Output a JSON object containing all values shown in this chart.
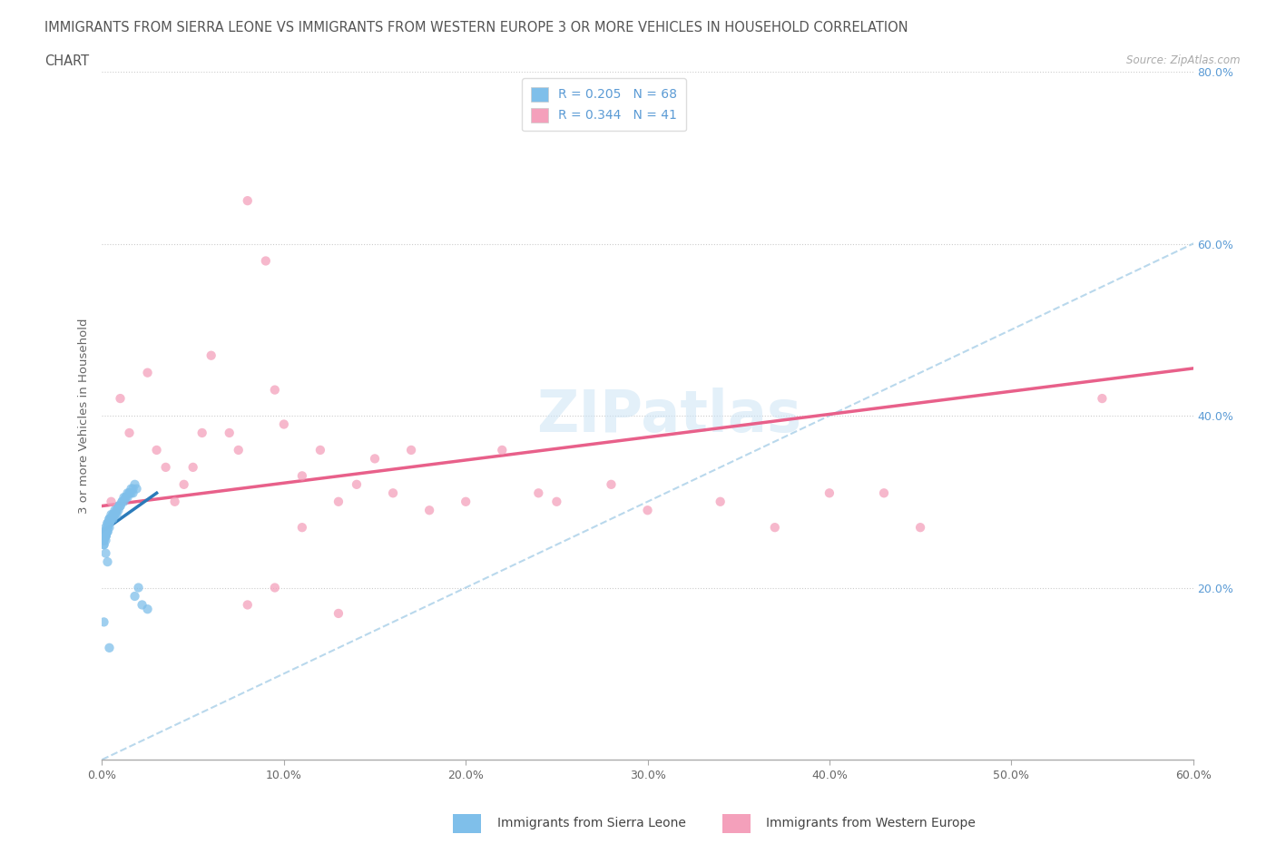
{
  "title_line1": "IMMIGRANTS FROM SIERRA LEONE VS IMMIGRANTS FROM WESTERN EUROPE 3 OR MORE VEHICLES IN HOUSEHOLD CORRELATION",
  "title_line2": "CHART",
  "source_text": "Source: ZipAtlas.com",
  "ylabel": "3 or more Vehicles in Household",
  "legend_label1": "Immigrants from Sierra Leone",
  "legend_label2": "Immigrants from Western Europe",
  "R1": 0.205,
  "N1": 68,
  "R2": 0.344,
  "N2": 41,
  "color_sl": "#7fbfea",
  "color_we": "#f4a0bb",
  "trendline_sl_color": "#2b7bba",
  "trendline_we_color": "#e8608a",
  "trendline_diag_color": "#a8cfe8",
  "xlim": [
    0.0,
    0.6
  ],
  "ylim": [
    0.0,
    0.8
  ],
  "sl_x": [
    0.002,
    0.003,
    0.001,
    0.004,
    0.002,
    0.001,
    0.003,
    0.002,
    0.001,
    0.002,
    0.003,
    0.004,
    0.005,
    0.003,
    0.002,
    0.001,
    0.004,
    0.003,
    0.002,
    0.001,
    0.005,
    0.006,
    0.004,
    0.003,
    0.002,
    0.007,
    0.005,
    0.003,
    0.004,
    0.002,
    0.008,
    0.006,
    0.004,
    0.009,
    0.007,
    0.005,
    0.01,
    0.008,
    0.006,
    0.011,
    0.009,
    0.007,
    0.012,
    0.01,
    0.008,
    0.013,
    0.011,
    0.009,
    0.014,
    0.012,
    0.015,
    0.013,
    0.016,
    0.014,
    0.017,
    0.015,
    0.018,
    0.016,
    0.019,
    0.017,
    0.02,
    0.018,
    0.022,
    0.025,
    0.003,
    0.002,
    0.001,
    0.004
  ],
  "sl_y": [
    0.27,
    0.275,
    0.265,
    0.28,
    0.26,
    0.255,
    0.27,
    0.265,
    0.25,
    0.26,
    0.275,
    0.28,
    0.285,
    0.265,
    0.26,
    0.25,
    0.275,
    0.27,
    0.265,
    0.255,
    0.28,
    0.285,
    0.27,
    0.265,
    0.255,
    0.29,
    0.28,
    0.27,
    0.275,
    0.26,
    0.285,
    0.28,
    0.275,
    0.29,
    0.285,
    0.28,
    0.295,
    0.29,
    0.285,
    0.3,
    0.295,
    0.285,
    0.3,
    0.295,
    0.29,
    0.305,
    0.3,
    0.295,
    0.31,
    0.305,
    0.31,
    0.305,
    0.31,
    0.305,
    0.315,
    0.31,
    0.32,
    0.315,
    0.315,
    0.31,
    0.2,
    0.19,
    0.18,
    0.175,
    0.23,
    0.24,
    0.16,
    0.13
  ],
  "we_x": [
    0.005,
    0.01,
    0.015,
    0.025,
    0.03,
    0.035,
    0.04,
    0.045,
    0.05,
    0.055,
    0.06,
    0.07,
    0.075,
    0.08,
    0.09,
    0.095,
    0.1,
    0.11,
    0.12,
    0.13,
    0.14,
    0.15,
    0.16,
    0.17,
    0.18,
    0.2,
    0.22,
    0.24,
    0.25,
    0.28,
    0.3,
    0.34,
    0.37,
    0.4,
    0.43,
    0.45,
    0.55,
    0.08,
    0.095,
    0.11,
    0.13
  ],
  "we_y": [
    0.3,
    0.42,
    0.38,
    0.45,
    0.36,
    0.34,
    0.3,
    0.32,
    0.34,
    0.38,
    0.47,
    0.38,
    0.36,
    0.65,
    0.58,
    0.43,
    0.39,
    0.33,
    0.36,
    0.3,
    0.32,
    0.35,
    0.31,
    0.36,
    0.29,
    0.3,
    0.36,
    0.31,
    0.3,
    0.32,
    0.29,
    0.3,
    0.27,
    0.31,
    0.31,
    0.27,
    0.42,
    0.18,
    0.2,
    0.27,
    0.17
  ],
  "we_trendline": [
    [
      0.0,
      0.6
    ],
    [
      0.295,
      0.455
    ]
  ],
  "sl_trendline": [
    [
      0.0,
      0.03
    ],
    [
      0.265,
      0.31
    ]
  ]
}
